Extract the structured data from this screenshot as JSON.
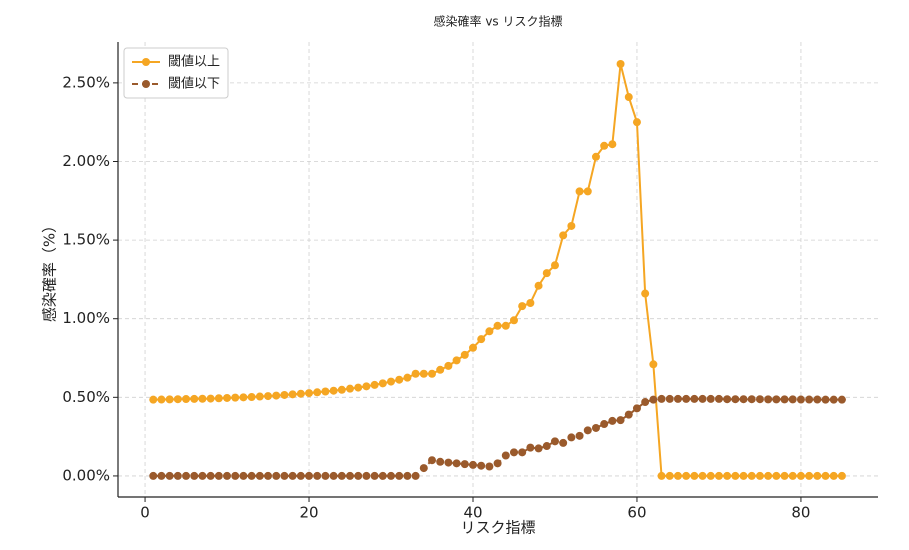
{
  "chart_data": {
    "type": "line",
    "title": "感染確率 vs リスク指標",
    "xlabel": "リスク指標",
    "ylabel": "感染確率（%）",
    "x": [
      1,
      2,
      3,
      4,
      5,
      6,
      7,
      8,
      9,
      10,
      11,
      12,
      13,
      14,
      15,
      16,
      17,
      18,
      19,
      20,
      21,
      22,
      23,
      24,
      25,
      26,
      27,
      28,
      29,
      30,
      31,
      32,
      33,
      34,
      35,
      36,
      37,
      38,
      39,
      40,
      41,
      42,
      43,
      44,
      45,
      46,
      47,
      48,
      49,
      50,
      51,
      52,
      53,
      54,
      55,
      56,
      57,
      58,
      59,
      60,
      61,
      62,
      63,
      64,
      65,
      66,
      67,
      68,
      69,
      70,
      71,
      72,
      73,
      74,
      75,
      76,
      77,
      78,
      79,
      80,
      81,
      82,
      83,
      84,
      85
    ],
    "series": [
      {
        "name": "閾値以上",
        "color": "#f5a623",
        "dashed": false,
        "values": [
          0.485,
          0.486,
          0.487,
          0.488,
          0.489,
          0.49,
          0.491,
          0.492,
          0.494,
          0.496,
          0.498,
          0.5,
          0.502,
          0.505,
          0.508,
          0.511,
          0.515,
          0.519,
          0.523,
          0.527,
          0.532,
          0.537,
          0.542,
          0.548,
          0.555,
          0.562,
          0.57,
          0.579,
          0.589,
          0.6,
          0.612,
          0.625,
          0.65,
          0.65,
          0.65,
          0.675,
          0.7,
          0.735,
          0.77,
          0.815,
          0.87,
          0.92,
          0.955,
          0.955,
          0.99,
          1.08,
          1.1,
          1.21,
          1.29,
          1.34,
          1.53,
          1.59,
          1.81,
          1.81,
          2.03,
          2.1,
          2.11,
          2.62,
          2.41,
          2.25,
          1.16,
          0.71,
          0,
          0,
          0,
          0,
          0,
          0,
          0,
          0,
          0,
          0,
          0,
          0,
          0,
          0,
          0,
          0,
          0,
          0,
          0,
          0,
          0,
          0,
          0
        ]
      },
      {
        "name": "閾値以下",
        "color": "#9a5a2c",
        "dashed": true,
        "values": [
          0,
          0,
          0,
          0,
          0,
          0,
          0,
          0,
          0,
          0,
          0,
          0,
          0,
          0,
          0,
          0,
          0,
          0,
          0,
          0,
          0,
          0,
          0,
          0,
          0,
          0,
          0,
          0,
          0,
          0,
          0,
          0,
          0,
          0.05,
          0.1,
          0.09,
          0.085,
          0.08,
          0.075,
          0.07,
          0.065,
          0.06,
          0.08,
          0.13,
          0.15,
          0.15,
          0.18,
          0.175,
          0.19,
          0.22,
          0.21,
          0.245,
          0.255,
          0.29,
          0.305,
          0.33,
          0.35,
          0.355,
          0.39,
          0.43,
          0.47,
          0.485,
          0.49,
          0.49,
          0.49,
          0.49,
          0.49,
          0.49,
          0.49,
          0.49,
          0.488,
          0.488,
          0.488,
          0.488,
          0.488,
          0.487,
          0.487,
          0.487,
          0.487,
          0.486,
          0.486,
          0.486,
          0.485,
          0.485,
          0.485
        ]
      }
    ],
    "xlim": [
      -3.3,
      89.4
    ],
    "xticks": [
      0,
      20,
      40,
      60,
      80
    ],
    "ylim": [
      -0.134,
      2.76
    ],
    "yticks": [
      {
        "value": 0,
        "label": "0.00%"
      },
      {
        "value": 0.5,
        "label": "0.50%"
      },
      {
        "value": 1,
        "label": "1.00%"
      },
      {
        "value": 1.5,
        "label": "1.50%"
      },
      {
        "value": 2,
        "label": "2.00%"
      },
      {
        "value": 2.5,
        "label": "2.50%"
      }
    ],
    "grid": true,
    "legend": "upper-left"
  }
}
